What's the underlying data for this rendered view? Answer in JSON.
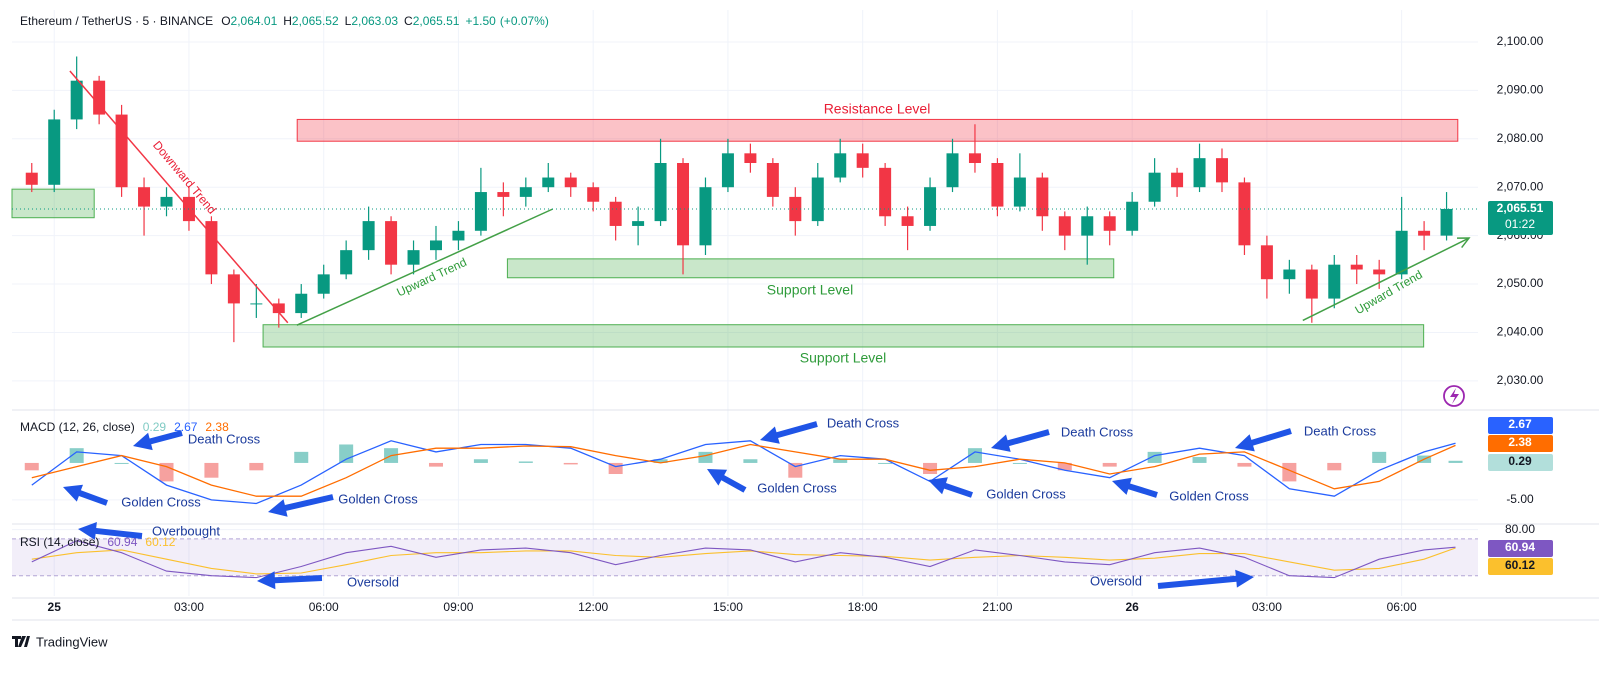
{
  "chart_data": [
    {
      "type": "candlestick",
      "title": "Ethereum / TetherUS · 5 · BINANCE",
      "ohlc": [
        {
          "key": "O",
          "value": 2064.01,
          "label": "2,064.01"
        },
        {
          "key": "H",
          "value": 2065.52,
          "label": "2,065.52"
        },
        {
          "key": "L",
          "value": 2063.03,
          "label": "2,063.03"
        },
        {
          "key": "C",
          "value": 2065.51,
          "label": "2,065.51"
        }
      ],
      "change": {
        "value": 1.5,
        "label": "+1.50"
      },
      "change_pct": {
        "value": 0.07,
        "label": "(+0.07%)"
      },
      "x": [
        -0.5,
        0,
        0.5,
        1,
        1.5,
        2,
        2.5,
        3,
        3.5,
        4,
        4.5,
        5,
        5.5,
        6,
        6.5,
        7,
        7.5,
        8,
        8.5,
        9,
        9.5,
        10,
        10.5,
        11,
        11.5,
        12,
        12.5,
        13,
        13.5,
        14,
        14.5,
        15,
        15.5,
        16,
        16.5,
        17,
        17.5,
        18,
        18.5,
        19,
        19.5,
        20,
        20.5,
        21,
        21.5,
        22,
        22.5,
        23,
        23.5,
        24,
        24.5,
        25,
        25.5,
        26,
        26.5,
        27,
        27.5,
        28,
        28.5,
        29,
        29.5,
        30,
        30.5,
        31
      ],
      "open": [
        2073,
        2070.5,
        2084,
        2092,
        2085,
        2070,
        2066,
        2068,
        2063,
        2052,
        2046,
        2046,
        2044,
        2048,
        2052,
        2057,
        2063,
        2054,
        2057,
        2059,
        2061,
        2069,
        2068,
        2070,
        2072,
        2070,
        2067,
        2062,
        2063,
        2075,
        2058,
        2070,
        2077,
        2075,
        2068,
        2063,
        2072,
        2077,
        2074,
        2064,
        2062,
        2070,
        2077,
        2075,
        2066,
        2072,
        2064,
        2060,
        2064,
        2061,
        2067,
        2073,
        2070,
        2076,
        2071,
        2058,
        2051,
        2053,
        2047,
        2054,
        2053,
        2052,
        2061,
        2060
      ],
      "high": [
        2075,
        2086,
        2097,
        2093,
        2087,
        2072,
        2070,
        2070,
        2064,
        2053,
        2050,
        2047,
        2050,
        2054,
        2059,
        2066,
        2064,
        2059,
        2062,
        2063,
        2074,
        2071,
        2072,
        2075,
        2073,
        2071,
        2068,
        2066,
        2080,
        2076,
        2072,
        2080,
        2079,
        2076,
        2070,
        2075,
        2080,
        2079,
        2075,
        2066,
        2072,
        2080,
        2083,
        2076,
        2077,
        2073,
        2065,
        2066,
        2065,
        2069,
        2076,
        2074,
        2079,
        2078,
        2072,
        2060,
        2055,
        2054,
        2056,
        2056,
        2055,
        2068,
        2063,
        2069
      ],
      "low": [
        2069,
        2069,
        2082,
        2083,
        2068,
        2060,
        2064,
        2061,
        2050,
        2038,
        2043,
        2041,
        2043,
        2047,
        2051,
        2055,
        2052,
        2052,
        2055,
        2057,
        2060,
        2064,
        2066,
        2069,
        2068,
        2065,
        2059,
        2058,
        2062,
        2052,
        2056,
        2069,
        2073,
        2066,
        2060,
        2062,
        2071,
        2072,
        2062,
        2057,
        2061,
        2069,
        2073,
        2064,
        2065,
        2061,
        2057,
        2054,
        2058,
        2060,
        2066,
        2068,
        2069,
        2069,
        2056,
        2047,
        2048,
        2042,
        2045,
        2050,
        2049,
        2051,
        2057,
        2059
      ],
      "close": [
        2070.5,
        2084,
        2092,
        2085,
        2070,
        2066,
        2068,
        2063,
        2052,
        2046,
        2046,
        2044,
        2048,
        2052,
        2057,
        2063,
        2054,
        2057,
        2059,
        2061,
        2069,
        2068,
        2070,
        2072,
        2070,
        2067,
        2062,
        2063,
        2075,
        2058,
        2070,
        2077,
        2075,
        2068,
        2063,
        2072,
        2077,
        2074,
        2064,
        2062,
        2070,
        2077,
        2075,
        2066,
        2072,
        2064,
        2060,
        2064,
        2061,
        2067,
        2073,
        2070,
        2076,
        2071,
        2058,
        2051,
        2053,
        2047,
        2054,
        2053,
        2052,
        2061,
        2060,
        2065.51
      ],
      "up_color": "#089981",
      "down_color": "#f23645",
      "xlim": [
        -0.94,
        31.7
      ],
      "xticks": [
        {
          "value": 0,
          "label": "25"
        },
        {
          "value": 3,
          "label": "03:00"
        },
        {
          "value": 6,
          "label": "06:00"
        },
        {
          "value": 9,
          "label": "09:00"
        },
        {
          "value": 12,
          "label": "12:00"
        },
        {
          "value": 15,
          "label": "15:00"
        },
        {
          "value": 18,
          "label": "18:00"
        },
        {
          "value": 21,
          "label": "21:00"
        },
        {
          "value": 24,
          "label": "26"
        },
        {
          "value": 27,
          "label": "03:00"
        },
        {
          "value": 30,
          "label": "06:00"
        }
      ],
      "ylim": [
        2024.4,
        2106.6
      ],
      "yticks": [
        {
          "value": 2030,
          "label": "2,030.00"
        },
        {
          "value": 2040,
          "label": "2,040.00"
        },
        {
          "value": 2050,
          "label": "2,050.00"
        },
        {
          "value": 2060,
          "label": "2,060.00"
        },
        {
          "value": 2070,
          "label": "2,070.00"
        },
        {
          "value": 2080,
          "label": "2,080.00"
        },
        {
          "value": 2090,
          "label": "2,090.00"
        },
        {
          "value": 2100,
          "label": "2,100.00"
        }
      ],
      "grid": true,
      "last_price": {
        "value": 2065.51,
        "label": "2,065.51"
      },
      "countdown": "01:22",
      "zones": [
        {
          "label": "Resistance Level",
          "color": "#f23645",
          "x": [
            5.41,
            31.25
          ],
          "y": [
            2079.5,
            2084
          ]
        },
        {
          "label": "Support Level",
          "color": "#4caf50",
          "x": [
            10.09,
            23.59
          ],
          "y": [
            2051.3,
            2055.2
          ]
        },
        {
          "label": "Support Level",
          "color": "#4caf50",
          "x": [
            4.65,
            30.49
          ],
          "y": [
            2037,
            2041.6
          ]
        },
        {
          "color": "#4caf50",
          "x": [
            -0.94,
            0.89
          ],
          "y": [
            2063.7,
            2069.6
          ]
        }
      ],
      "trendlines": [
        {
          "label": "Downward Trend",
          "color": "#f23645",
          "x": [
            0.35,
            5.2
          ],
          "y": [
            2094,
            2042
          ]
        },
        {
          "label": "Upward Trend",
          "color": "#43a047",
          "x": [
            5.4,
            11.1
          ],
          "y": [
            2041.5,
            2065.5
          ]
        },
        {
          "label": "Upward Trend",
          "color": "#43a047",
          "x": [
            27.8,
            31.5
          ],
          "y": [
            2042.5,
            2059.5
          ],
          "arrow": true
        }
      ],
      "watermark": "TradingView"
    },
    {
      "type": "macd",
      "title": "MACD (12, 26, close)",
      "legend_values": [
        0.29,
        2.67,
        2.38
      ],
      "legend_colors": [
        "#80cbc4",
        "#2962ff",
        "#ff6d00"
      ],
      "x": [
        -0.5,
        0.5,
        1.5,
        2.5,
        3.5,
        4.5,
        5.5,
        6.5,
        7.5,
        8.5,
        9.5,
        10.5,
        11.5,
        12.5,
        13.5,
        14.5,
        15.5,
        16.5,
        17.5,
        18.5,
        19.5,
        20.5,
        21.5,
        22.5,
        23.5,
        24.5,
        25.5,
        26.5,
        27.5,
        28.5,
        29.5,
        30.5,
        31.2
      ],
      "macd": {
        "color": "#2962ff",
        "values": [
          -3,
          1.5,
          1,
          -3,
          -5,
          -5.5,
          -3,
          0.5,
          3,
          1.5,
          2.5,
          2.5,
          2,
          -0.5,
          0.5,
          2.5,
          3,
          -0.5,
          1,
          0.5,
          -2.5,
          1.5,
          0.5,
          -1,
          -2,
          1,
          2,
          1,
          -3.5,
          -4.5,
          -1,
          1.5,
          2.67
        ]
      },
      "signal": {
        "color": "#ff6d00",
        "values": [
          -2,
          -0.5,
          1,
          -0.5,
          -3,
          -4.5,
          -4.5,
          -2,
          1,
          2,
          2,
          2.3,
          2.2,
          1,
          0,
          1,
          2.5,
          1.5,
          0.5,
          0.5,
          -1,
          -0.5,
          0.5,
          0,
          -1.5,
          -0.5,
          1.2,
          1.5,
          -1,
          -3.5,
          -2.5,
          0.5,
          2.38
        ]
      },
      "histogram": {
        "up_color": "#26a69a",
        "down_color": "#ef5350",
        "values": [
          -1,
          2,
          0,
          -2.5,
          -2,
          -1,
          1.5,
          2.5,
          2,
          -0.5,
          0.5,
          0.2,
          -0.2,
          -1.5,
          0.5,
          1.5,
          0.5,
          -2,
          0.5,
          0,
          -1.5,
          2,
          0,
          -1,
          -0.5,
          1.5,
          0.8,
          -0.5,
          -2.5,
          -1,
          1.5,
          1,
          0.29
        ]
      },
      "ylim": [
        -8,
        6.9
      ],
      "yticks": [
        {
          "value": -5,
          "label": "-5.00"
        }
      ],
      "annotations": [
        "Death Cross",
        "Death Cross",
        "Death Cross",
        "Death Cross",
        "Golden Cross",
        "Golden Cross",
        "Golden Cross",
        "Golden Cross",
        "Golden Cross"
      ]
    },
    {
      "type": "rsi",
      "title": "RSI (14, close)",
      "legend_values": [
        60.94,
        60.12
      ],
      "x": [
        -0.5,
        0.5,
        1.5,
        2.5,
        3.5,
        4.5,
        5.5,
        6.5,
        7.5,
        8.5,
        9.5,
        10.5,
        11.5,
        12.5,
        13.5,
        14.5,
        15.5,
        16.5,
        17.5,
        18.5,
        19.5,
        20.5,
        21.5,
        22.5,
        23.5,
        24.5,
        25.5,
        26.5,
        27.5,
        28.5,
        29.5,
        30.5,
        31.2
      ],
      "rsi": {
        "color": "#7e57c2",
        "values": [
          45,
          68,
          55,
          35,
          30,
          28,
          40,
          55,
          62,
          50,
          58,
          60,
          55,
          42,
          52,
          60,
          58,
          45,
          55,
          50,
          40,
          58,
          52,
          45,
          42,
          55,
          60,
          50,
          30,
          28,
          48,
          58,
          60.94
        ]
      },
      "ma": {
        "color": "#fbc02d",
        "values": [
          48,
          55,
          58,
          48,
          38,
          32,
          33,
          42,
          52,
          55,
          55,
          57,
          57,
          52,
          50,
          54,
          57,
          53,
          52,
          51,
          47,
          50,
          52,
          50,
          47,
          49,
          54,
          54,
          45,
          36,
          38,
          48,
          60.12
        ]
      },
      "band": [
        30,
        70
      ],
      "ylim": [
        8,
        84
      ],
      "yticks": [
        {
          "value": 80,
          "label": "80.00"
        }
      ],
      "annotations": [
        "Overbought",
        "Oversold",
        "Oversold"
      ]
    }
  ]
}
